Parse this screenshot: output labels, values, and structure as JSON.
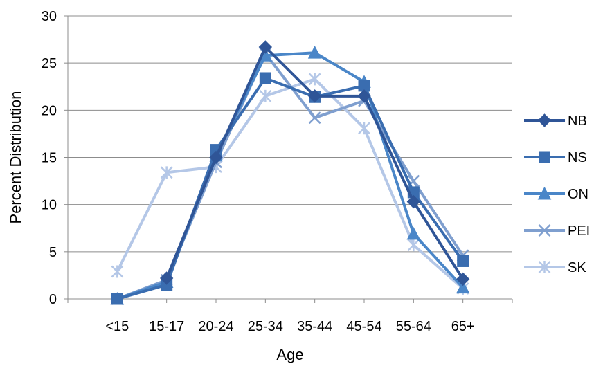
{
  "chart_data": {
    "type": "line",
    "title": "",
    "xlabel": "Age",
    "ylabel": "Percent Distribution",
    "ylim": [
      0,
      30
    ],
    "yticks": [
      0,
      5,
      10,
      15,
      20,
      25,
      30
    ],
    "grid": "horizontal",
    "legend_position": "right",
    "categories": [
      "<15",
      "15-17",
      "20-24",
      "25-34",
      "35-44",
      "45-54",
      "55-64",
      "65+"
    ],
    "series": [
      {
        "name": "NB",
        "color": "#2f5597",
        "marker": "diamond",
        "values": [
          null,
          2.2,
          15.0,
          26.7,
          21.5,
          21.5,
          10.3,
          2.1
        ]
      },
      {
        "name": "NS",
        "color": "#3a6db0",
        "marker": "square",
        "values": [
          0.0,
          1.5,
          15.8,
          23.4,
          21.4,
          22.6,
          11.3,
          4.0
        ]
      },
      {
        "name": "ON",
        "color": "#4a86c8",
        "marker": "triangle",
        "values": [
          0.0,
          1.8,
          15.2,
          25.8,
          26.1,
          23.0,
          6.9,
          1.2
        ]
      },
      {
        "name": "PEI",
        "color": "#7f9fcf",
        "marker": "x",
        "values": [
          0.0,
          2.0,
          14.5,
          26.0,
          19.2,
          21.0,
          12.5,
          4.6
        ]
      },
      {
        "name": "SK",
        "color": "#b4c7e7",
        "marker": "star",
        "values": [
          2.9,
          13.4,
          14.0,
          21.5,
          23.3,
          18.1,
          5.7,
          1.1
        ]
      }
    ]
  }
}
